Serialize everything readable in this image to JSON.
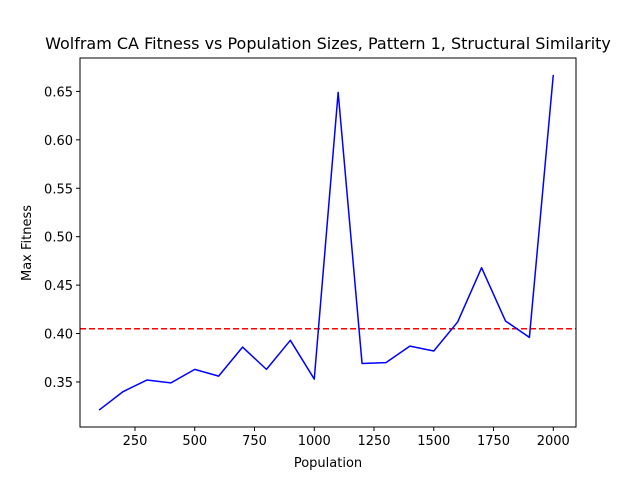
{
  "chart_data": {
    "type": "line",
    "title": "Wolfram CA Fitness vs Population Sizes, Pattern 1, Structural Similarity",
    "xlabel": "Population",
    "ylabel": "Max Fitness",
    "xlim": [
      20,
      2095
    ],
    "ylim": [
      0.3035,
      0.6845
    ],
    "xticks": [
      250,
      500,
      750,
      1000,
      1250,
      1500,
      1750,
      2000
    ],
    "xtick_labels": [
      "250",
      "500",
      "750",
      "1000",
      "1250",
      "1500",
      "1750",
      "2000"
    ],
    "yticks": [
      0.35,
      0.4,
      0.45,
      0.5,
      0.55,
      0.6,
      0.65
    ],
    "ytick_labels": [
      "0.35",
      "0.40",
      "0.45",
      "0.50",
      "0.55",
      "0.60",
      "0.65"
    ],
    "grid": false,
    "series": [
      {
        "color": "#0000ff",
        "x": [
          100,
          200,
          300,
          400,
          500,
          600,
          700,
          800,
          900,
          1000,
          1100,
          1200,
          1300,
          1400,
          1500,
          1600,
          1700,
          1800,
          1900,
          2000
        ],
        "values": [
          0.321,
          0.34,
          0.352,
          0.349,
          0.363,
          0.356,
          0.386,
          0.363,
          0.393,
          0.353,
          0.649,
          0.369,
          0.37,
          0.387,
          0.382,
          0.412,
          0.468,
          0.413,
          0.396,
          0.667
        ]
      }
    ],
    "hline": {
      "y": 0.405,
      "color": "#ff0000",
      "style": "dashed"
    }
  }
}
